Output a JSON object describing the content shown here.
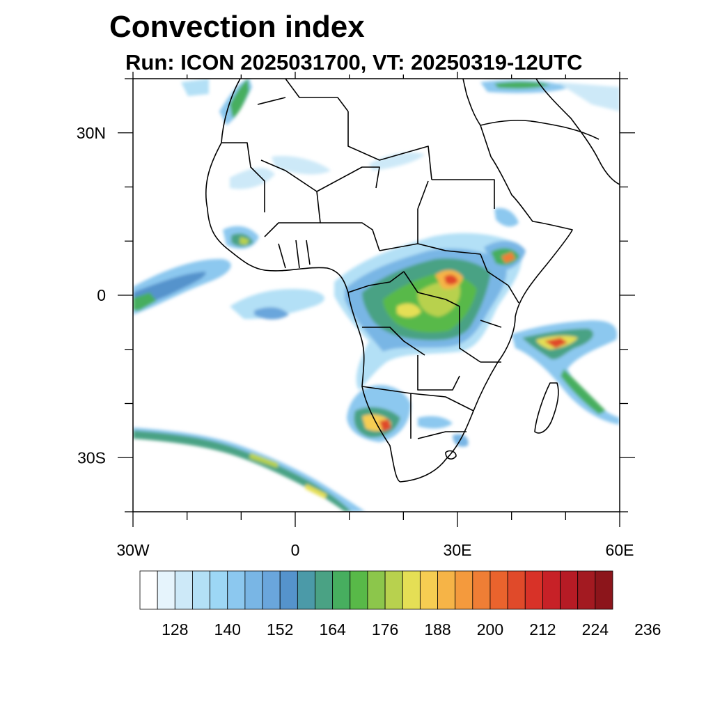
{
  "title": "Convection index",
  "subtitle": "Run: ICON 2025031700,  VT: 20250319-12UTC",
  "map": {
    "lon_range": [
      -30,
      60
    ],
    "lat_range": [
      -40,
      40
    ],
    "lon_ticks": [
      "30W",
      "0",
      "30E",
      "60E"
    ],
    "lat_ticks": [
      "30N",
      "0",
      "30S"
    ],
    "projection": "cylindrical equidistant",
    "boundaries": "coastlines and country borders",
    "fill_note": "convection index contours"
  },
  "colorbar": {
    "colors": [
      "#ffffff",
      "#e6f4fc",
      "#cde9f8",
      "#b3e0f6",
      "#9dd7f5",
      "#8cc8ef",
      "#79b6e5",
      "#6aa6dc",
      "#5593cc",
      "#4b9aa8",
      "#4aa284",
      "#47ae5f",
      "#58b948",
      "#8cc64b",
      "#b8d14e",
      "#e5df55",
      "#f6cd52",
      "#f6b447",
      "#f49a3d",
      "#ef7e35",
      "#ea632d",
      "#e04a2a",
      "#d83228",
      "#c72127",
      "#b61b25",
      "#a31a21",
      "#8c151b"
    ],
    "tick_labels": [
      "128",
      "140",
      "152",
      "164",
      "176",
      "188",
      "200",
      "212",
      "224",
      "236"
    ]
  }
}
